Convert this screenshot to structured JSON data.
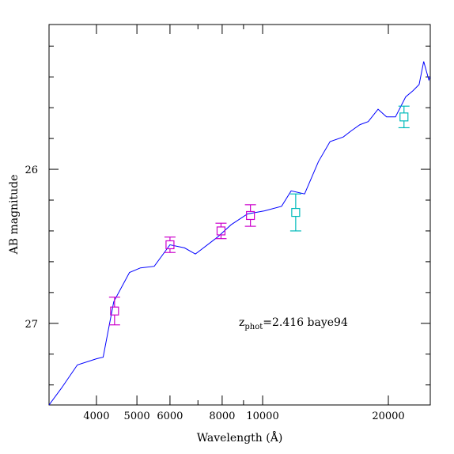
{
  "chart_data": {
    "type": "line",
    "xlabel": "Wavelength (Å)",
    "ylabel": "AB magnitude",
    "xscale": "log",
    "xlim": [
      3080,
      25200
    ],
    "ylim": [
      27.53,
      25.06
    ],
    "x_ticks_major": [
      4000,
      5000,
      6000,
      8000,
      10000,
      20000
    ],
    "x_ticks_minor": [
      7000,
      9000,
      30000
    ],
    "y_ticks_major": [
      26,
      27
    ],
    "y_tick_step_minor": 0.2,
    "annotation": {
      "z_symbol": "z",
      "subscript": "phot",
      "rest": "=2.416 baye94",
      "color": "#0000ff"
    },
    "series": [
      {
        "kind": "sed_model",
        "color": "#0000ff",
        "points": [
          [
            3080,
            27.53
          ],
          [
            3300,
            27.42
          ],
          [
            3600,
            27.27
          ],
          [
            4000,
            27.23
          ],
          [
            4150,
            27.22
          ],
          [
            4400,
            26.86
          ],
          [
            4800,
            26.67
          ],
          [
            5100,
            26.64
          ],
          [
            5500,
            26.63
          ],
          [
            6000,
            26.49
          ],
          [
            6500,
            26.51
          ],
          [
            6900,
            26.55
          ],
          [
            7800,
            26.44
          ],
          [
            8400,
            26.36
          ],
          [
            9200,
            26.29
          ],
          [
            10100,
            26.27
          ],
          [
            11100,
            26.24
          ],
          [
            11700,
            26.14
          ],
          [
            12600,
            26.16
          ],
          [
            13600,
            25.95
          ],
          [
            14500,
            25.82
          ],
          [
            15600,
            25.79
          ],
          [
            16300,
            25.75
          ],
          [
            17100,
            25.71
          ],
          [
            17900,
            25.69
          ],
          [
            18900,
            25.61
          ],
          [
            19800,
            25.66
          ],
          [
            20800,
            25.66
          ],
          [
            22000,
            25.53
          ],
          [
            22900,
            25.49
          ],
          [
            23700,
            25.45
          ],
          [
            24300,
            25.3
          ],
          [
            25000,
            25.42
          ],
          [
            25200,
            25.4
          ]
        ]
      },
      {
        "kind": "photometry",
        "color": "#cc00cc",
        "points": [
          {
            "x": 4420,
            "y": 26.92,
            "yerr": 0.09
          },
          {
            "x": 6000,
            "y": 26.49,
            "yerr": 0.05
          },
          {
            "x": 7950,
            "y": 26.4,
            "yerr": 0.05
          },
          {
            "x": 9350,
            "y": 26.3,
            "yerr": 0.07
          }
        ]
      },
      {
        "kind": "photometry",
        "color": "#00bbbb",
        "points": [
          {
            "x": 12000,
            "y": 26.28,
            "yerr": 0.12
          },
          {
            "x": 21800,
            "y": 25.66,
            "yerr": 0.07
          }
        ]
      }
    ]
  }
}
